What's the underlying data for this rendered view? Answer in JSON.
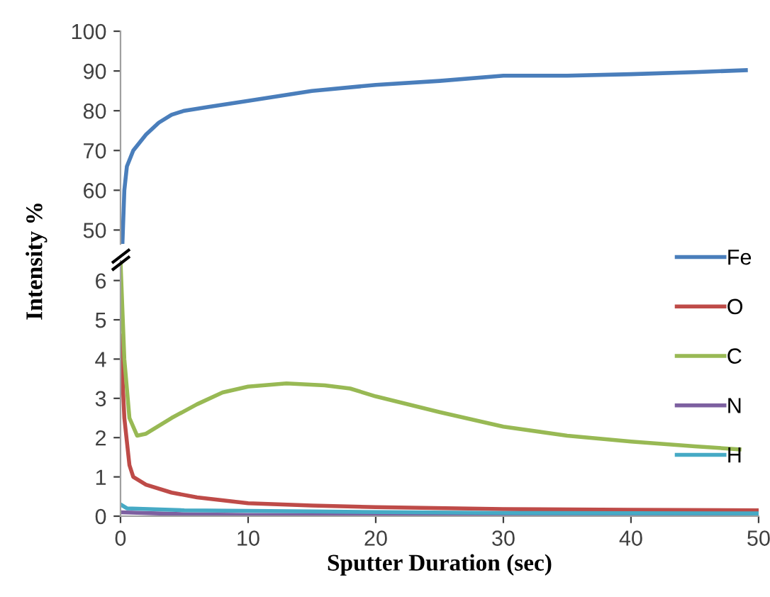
{
  "chart_data": [
    {
      "type": "line",
      "xlim": [
        0,
        50
      ],
      "ylim": [
        46.5,
        100
      ],
      "yticks": [
        50,
        60,
        70,
        80,
        90,
        100
      ],
      "tick_labels": "y",
      "legend": "right",
      "grid": false,
      "series": [
        {
          "name": "Fe",
          "color": "#4a7ebb",
          "x": [
            0.15,
            0.3,
            0.5,
            1,
            2,
            3,
            4,
            5,
            7,
            10,
            15,
            20,
            25,
            30,
            35,
            40,
            45,
            49
          ],
          "values": [
            46.5,
            60,
            66,
            70,
            74,
            77,
            79,
            80,
            81,
            82.5,
            85,
            86.5,
            87.5,
            88.8,
            88.8,
            89.2,
            89.7,
            90.2
          ]
        }
      ]
    },
    {
      "type": "line",
      "xlim": [
        0,
        50
      ],
      "xticks": [
        0,
        10,
        20,
        30,
        40,
        50
      ],
      "ylim": [
        0,
        6.5
      ],
      "yticks": [
        0,
        1,
        2,
        3,
        4,
        5,
        6
      ],
      "xlabel": "Sputter Duration (sec)",
      "ylabel": "Intensity %",
      "legend": "right",
      "grid": false,
      "series": [
        {
          "name": "O",
          "color": "#be4b48",
          "x": [
            0,
            0.3,
            0.7,
            1,
            2,
            4,
            6,
            10,
            15,
            20,
            30,
            40,
            50
          ],
          "values": [
            4.6,
            2.5,
            1.3,
            1.0,
            0.8,
            0.6,
            0.48,
            0.33,
            0.27,
            0.23,
            0.18,
            0.16,
            0.15
          ]
        },
        {
          "name": "C",
          "color": "#98b954",
          "x": [
            0,
            0.3,
            0.7,
            1.3,
            2,
            4,
            6,
            8,
            10,
            13,
            16,
            18,
            20,
            25,
            30,
            35,
            40,
            45,
            48.5
          ],
          "values": [
            6.5,
            4,
            2.5,
            2.05,
            2.1,
            2.5,
            2.85,
            3.15,
            3.3,
            3.38,
            3.33,
            3.25,
            3.05,
            2.65,
            2.28,
            2.05,
            1.9,
            1.78,
            1.7
          ]
        },
        {
          "name": "N",
          "color": "#7d60a0",
          "x": [
            0,
            5,
            10,
            50
          ],
          "values": [
            0.1,
            0.05,
            0.03,
            0.03
          ]
        },
        {
          "name": "H",
          "color": "#46aac5",
          "x": [
            0,
            0.5,
            5,
            15,
            30,
            50
          ],
          "values": [
            0.3,
            0.2,
            0.15,
            0.12,
            0.08,
            0.07
          ]
        }
      ]
    }
  ]
}
